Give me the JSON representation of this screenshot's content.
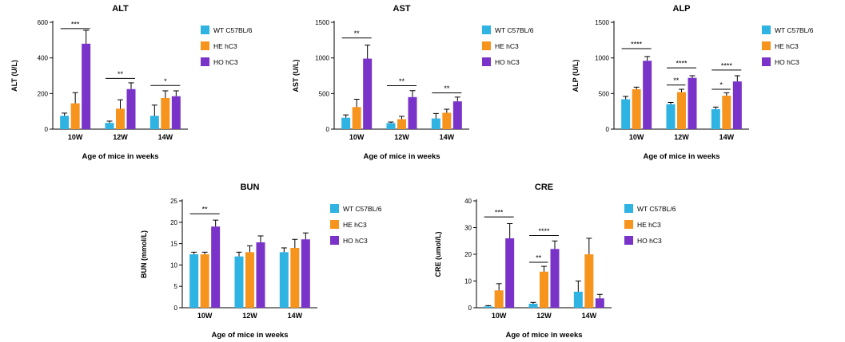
{
  "figure": {
    "description_title": ""
  },
  "legend": {
    "items": [
      {
        "label": "WT C57BL/6",
        "color": "#2fb3e3"
      },
      {
        "label": "HE hC3",
        "color": "#f7941e"
      },
      {
        "label": "HO hC3",
        "color": "#7a33c9"
      }
    ]
  },
  "chart_data": [
    {
      "id": "alt",
      "type": "bar",
      "title": "ALT",
      "ylabel": "ALT (U/L)",
      "xlabel": "Age of mice in weeks",
      "categories": [
        "10W",
        "12W",
        "14W"
      ],
      "ylim": [
        0,
        600
      ],
      "yticks": [
        0,
        200,
        400,
        600
      ],
      "legend_position": "right",
      "grid": false,
      "series": [
        {
          "name": "WT C57BL/6",
          "color": "#2fb3e3",
          "values": [
            75,
            35,
            75
          ],
          "errors": [
            15,
            10,
            60
          ]
        },
        {
          "name": "HE hC3",
          "color": "#f7941e",
          "values": [
            145,
            115,
            175
          ],
          "errors": [
            60,
            50,
            40
          ]
        },
        {
          "name": "HO hC3",
          "color": "#7a33c9",
          "values": [
            480,
            225,
            185
          ],
          "errors": [
            75,
            35,
            30
          ]
        }
      ],
      "annotations": [
        {
          "group": 0,
          "from": 0,
          "to": 2,
          "label": "***",
          "y": 565
        },
        {
          "group": 1,
          "from": 0,
          "to": 2,
          "label": "**",
          "y": 285
        },
        {
          "group": 2,
          "from": 0,
          "to": 2,
          "label": "*",
          "y": 245
        }
      ]
    },
    {
      "id": "ast",
      "type": "bar",
      "title": "AST",
      "ylabel": "AST (U/L)",
      "xlabel": "Age of mice in weeks",
      "categories": [
        "10W",
        "12W",
        "14W"
      ],
      "ylim": [
        0,
        1500
      ],
      "yticks": [
        0,
        500,
        1000,
        1500
      ],
      "legend_position": "right",
      "grid": false,
      "series": [
        {
          "name": "WT C57BL/6",
          "color": "#2fb3e3",
          "values": [
            160,
            85,
            150
          ],
          "errors": [
            40,
            15,
            70
          ]
        },
        {
          "name": "HE hC3",
          "color": "#f7941e",
          "values": [
            310,
            140,
            230
          ],
          "errors": [
            110,
            40,
            50
          ]
        },
        {
          "name": "HO hC3",
          "color": "#7a33c9",
          "values": [
            990,
            450,
            390
          ],
          "errors": [
            190,
            90,
            60
          ]
        }
      ],
      "annotations": [
        {
          "group": 0,
          "from": 0,
          "to": 2,
          "label": "**",
          "y": 1280
        },
        {
          "group": 1,
          "from": 0,
          "to": 2,
          "label": "**",
          "y": 610
        },
        {
          "group": 2,
          "from": 0,
          "to": 2,
          "label": "**",
          "y": 510
        }
      ]
    },
    {
      "id": "alp",
      "type": "bar",
      "title": "ALP",
      "ylabel": "ALP (U/L)",
      "xlabel": "Age of mice in weeks",
      "categories": [
        "10W",
        "12W",
        "14W"
      ],
      "ylim": [
        0,
        1500
      ],
      "yticks": [
        0,
        500,
        1000,
        1500
      ],
      "legend_position": "right",
      "grid": false,
      "series": [
        {
          "name": "WT C57BL/6",
          "color": "#2fb3e3",
          "values": [
            420,
            350,
            280
          ],
          "errors": [
            40,
            25,
            30
          ]
        },
        {
          "name": "HE hC3",
          "color": "#f7941e",
          "values": [
            560,
            520,
            470
          ],
          "errors": [
            30,
            40,
            40
          ]
        },
        {
          "name": "HO hC3",
          "color": "#7a33c9",
          "values": [
            960,
            720,
            670
          ],
          "errors": [
            60,
            30,
            80
          ]
        }
      ],
      "annotations": [
        {
          "group": 0,
          "from": 0,
          "to": 2,
          "label": "****",
          "y": 1130
        },
        {
          "group": 1,
          "from": 0,
          "to": 1,
          "label": "**",
          "y": 620
        },
        {
          "group": 1,
          "from": 0,
          "to": 2,
          "label": "****",
          "y": 860
        },
        {
          "group": 2,
          "from": 0,
          "to": 1,
          "label": "*",
          "y": 560
        },
        {
          "group": 2,
          "from": 0,
          "to": 2,
          "label": "****",
          "y": 830
        }
      ]
    },
    {
      "id": "bun",
      "type": "bar",
      "title": "BUN",
      "ylabel": "BUN (mmol/L)",
      "xlabel": "Age of mice in weeks",
      "categories": [
        "10W",
        "12W",
        "14W"
      ],
      "ylim": [
        0,
        25
      ],
      "yticks": [
        0,
        5,
        10,
        15,
        20,
        25
      ],
      "legend_position": "right",
      "grid": false,
      "series": [
        {
          "name": "WT C57BL/6",
          "color": "#2fb3e3",
          "values": [
            12.5,
            12,
            13
          ],
          "errors": [
            0.5,
            1,
            1
          ]
        },
        {
          "name": "HE hC3",
          "color": "#f7941e",
          "values": [
            12.5,
            13,
            14
          ],
          "errors": [
            0.5,
            1.5,
            2
          ]
        },
        {
          "name": "HO hC3",
          "color": "#7a33c9",
          "values": [
            19,
            15.3,
            16
          ],
          "errors": [
            1.5,
            1.5,
            1.5
          ]
        }
      ],
      "annotations": [
        {
          "group": 0,
          "from": 0,
          "to": 2,
          "label": "**",
          "y": 22
        }
      ]
    },
    {
      "id": "cre",
      "type": "bar",
      "title": "CRE",
      "ylabel": "CRE (umol/L)",
      "xlabel": "Age of mice in weeks",
      "categories": [
        "10W",
        "12W",
        "14W"
      ],
      "ylim": [
        0,
        40
      ],
      "yticks": [
        0,
        10,
        20,
        30,
        40
      ],
      "legend_position": "right",
      "grid": false,
      "series": [
        {
          "name": "WT C57BL/6",
          "color": "#2fb3e3",
          "values": [
            0.5,
            1.5,
            6
          ],
          "errors": [
            0.3,
            0.5,
            4
          ]
        },
        {
          "name": "HE hC3",
          "color": "#f7941e",
          "values": [
            6.5,
            13.5,
            20
          ],
          "errors": [
            2.5,
            2,
            6
          ]
        },
        {
          "name": "HO hC3",
          "color": "#7a33c9",
          "values": [
            26,
            22,
            3.5
          ],
          "errors": [
            5.5,
            3,
            1.5
          ]
        }
      ],
      "annotations": [
        {
          "group": 0,
          "from": 0,
          "to": 2,
          "label": "***",
          "y": 34
        },
        {
          "group": 1,
          "from": 0,
          "to": 1,
          "label": "**",
          "y": 17
        },
        {
          "group": 1,
          "from": 0,
          "to": 2,
          "label": "****",
          "y": 27
        }
      ]
    }
  ]
}
